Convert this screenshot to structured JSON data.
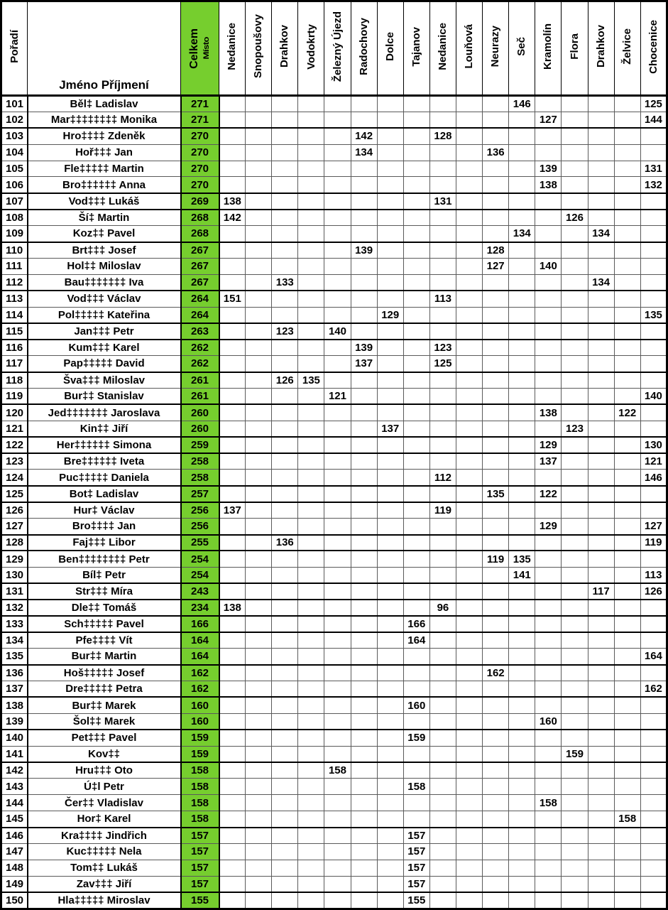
{
  "colors": {
    "green": "#76CE2E",
    "grid": "#5a5a5a",
    "border": "#000000"
  },
  "header": {
    "rank": "Pořadí",
    "name": "Jméno Příjmení",
    "total_main": "Celkem",
    "total_sub": "Místo",
    "venues": [
      "Nedanice",
      "Snopoušovy",
      "Drahkov",
      "Vodokrty",
      "Železný Újezd",
      "Radochovy",
      "Dolce",
      "Tajanov",
      "Nedanice",
      "Louňová",
      "Neurazy",
      "Seč",
      "Kramolín",
      "Flora",
      "Drahkov",
      "Želvice",
      "Chocenice"
    ]
  },
  "rows": [
    {
      "rank": "101",
      "name": "Běl‡ Ladislav",
      "total": "271",
      "scores": {
        "11": "146",
        "16": "125"
      }
    },
    {
      "rank": "102",
      "name": "Mar‡‡‡‡‡‡‡‡ Monika",
      "total": "271",
      "scores": {
        "12": "127",
        "16": "144"
      }
    },
    {
      "rank": "103",
      "name": "Hro‡‡‡‡ Zdeněk",
      "total": "270",
      "scores": {
        "5": "142",
        "8": "128"
      }
    },
    {
      "rank": "104",
      "name": "Hoř‡‡‡ Jan",
      "total": "270",
      "scores": {
        "5": "134",
        "10": "136"
      }
    },
    {
      "rank": "105",
      "name": "Fle‡‡‡‡‡ Martin",
      "total": "270",
      "scores": {
        "12": "139",
        "16": "131"
      }
    },
    {
      "rank": "106",
      "name": "Bro‡‡‡‡‡‡ Anna",
      "total": "270",
      "scores": {
        "12": "138",
        "16": "132"
      }
    },
    {
      "rank": "107",
      "name": "Vod‡‡‡ Lukáš",
      "total": "269",
      "scores": {
        "0": "138",
        "8": "131"
      }
    },
    {
      "rank": "108",
      "name": "Ší‡ Martin",
      "total": "268",
      "scores": {
        "0": "142",
        "13": "126"
      }
    },
    {
      "rank": "109",
      "name": "Koz‡‡ Pavel",
      "total": "268",
      "scores": {
        "11": "134",
        "14": "134"
      }
    },
    {
      "rank": "110",
      "name": "Brt‡‡‡ Josef",
      "total": "267",
      "scores": {
        "5": "139",
        "10": "128"
      }
    },
    {
      "rank": "111",
      "name": "Hol‡‡ Miloslav",
      "total": "267",
      "scores": {
        "10": "127",
        "12": "140"
      }
    },
    {
      "rank": "112",
      "name": "Bau‡‡‡‡‡‡‡ Iva",
      "total": "267",
      "scores": {
        "2": "133",
        "14": "134"
      }
    },
    {
      "rank": "113",
      "name": "Vod‡‡‡ Václav",
      "total": "264",
      "scores": {
        "0": "151",
        "8": "113"
      }
    },
    {
      "rank": "114",
      "name": "Pol‡‡‡‡‡ Kateřina",
      "total": "264",
      "scores": {
        "6": "129",
        "16": "135"
      }
    },
    {
      "rank": "115",
      "name": "Jan‡‡‡ Petr",
      "total": "263",
      "scores": {
        "2": "123",
        "4": "140"
      }
    },
    {
      "rank": "116",
      "name": "Kum‡‡‡ Karel",
      "total": "262",
      "scores": {
        "5": "139",
        "8": "123"
      }
    },
    {
      "rank": "117",
      "name": "Pap‡‡‡‡‡ David",
      "total": "262",
      "scores": {
        "5": "137",
        "8": "125"
      }
    },
    {
      "rank": "118",
      "name": "Šva‡‡‡ Miloslav",
      "total": "261",
      "scores": {
        "2": "126",
        "3": "135"
      }
    },
    {
      "rank": "119",
      "name": "Bur‡‡ Stanislav",
      "total": "261",
      "scores": {
        "4": "121",
        "16": "140"
      }
    },
    {
      "rank": "120",
      "name": "Jed‡‡‡‡‡‡‡ Jaroslava",
      "total": "260",
      "scores": {
        "12": "138",
        "15": "122"
      }
    },
    {
      "rank": "121",
      "name": "Kin‡‡ Jiří",
      "total": "260",
      "scores": {
        "6": "137",
        "13": "123"
      }
    },
    {
      "rank": "122",
      "name": "Her‡‡‡‡‡‡ Simona",
      "total": "259",
      "scores": {
        "12": "129",
        "16": "130"
      }
    },
    {
      "rank": "123",
      "name": "Bre‡‡‡‡‡‡ Iveta",
      "total": "258",
      "scores": {
        "12": "137",
        "16": "121"
      }
    },
    {
      "rank": "124",
      "name": "Puc‡‡‡‡‡ Daniela",
      "total": "258",
      "scores": {
        "8": "112",
        "16": "146"
      }
    },
    {
      "rank": "125",
      "name": "Bot‡ Ladislav",
      "total": "257",
      "scores": {
        "10": "135",
        "12": "122"
      }
    },
    {
      "rank": "126",
      "name": "Hur‡ Václav",
      "total": "256",
      "scores": {
        "0": "137",
        "8": "119"
      }
    },
    {
      "rank": "127",
      "name": "Bro‡‡‡‡ Jan",
      "total": "256",
      "scores": {
        "12": "129",
        "16": "127"
      }
    },
    {
      "rank": "128",
      "name": "Faj‡‡‡ Libor",
      "total": "255",
      "scores": {
        "2": "136",
        "16": "119"
      }
    },
    {
      "rank": "129",
      "name": "Ben‡‡‡‡‡‡‡‡ Petr",
      "total": "254",
      "scores": {
        "10": "119",
        "11": "135"
      }
    },
    {
      "rank": "130",
      "name": "Bíl‡ Petr",
      "total": "254",
      "scores": {
        "11": "141",
        "16": "113"
      }
    },
    {
      "rank": "131",
      "name": "Str‡‡‡ Míra",
      "total": "243",
      "scores": {
        "14": "117",
        "16": "126"
      }
    },
    {
      "rank": "132",
      "name": "Dle‡‡ Tomáš",
      "total": "234",
      "scores": {
        "0": "138",
        "8": "96"
      }
    },
    {
      "rank": "133",
      "name": "Sch‡‡‡‡‡ Pavel",
      "total": "166",
      "scores": {
        "7": "166"
      }
    },
    {
      "rank": "134",
      "name": "Pfe‡‡‡‡ Vít",
      "total": "164",
      "scores": {
        "7": "164"
      }
    },
    {
      "rank": "135",
      "name": "Bur‡‡ Martin",
      "total": "164",
      "scores": {
        "16": "164"
      }
    },
    {
      "rank": "136",
      "name": "Hoš‡‡‡‡‡ Josef",
      "total": "162",
      "scores": {
        "10": "162"
      }
    },
    {
      "rank": "137",
      "name": "Dre‡‡‡‡‡ Petra",
      "total": "162",
      "scores": {
        "16": "162"
      }
    },
    {
      "rank": "138",
      "name": "Bur‡‡ Marek",
      "total": "160",
      "scores": {
        "7": "160"
      }
    },
    {
      "rank": "139",
      "name": "Šol‡‡ Marek",
      "total": "160",
      "scores": {
        "12": "160"
      }
    },
    {
      "rank": "140",
      "name": "Pet‡‡‡ Pavel",
      "total": "159",
      "scores": {
        "7": "159"
      }
    },
    {
      "rank": "141",
      "name": "Kov‡‡",
      "total": "159",
      "scores": {
        "13": "159"
      }
    },
    {
      "rank": "142",
      "name": "Hru‡‡‡ Oto",
      "total": "158",
      "scores": {
        "4": "158"
      }
    },
    {
      "rank": "143",
      "name": "Ú‡l Petr",
      "total": "158",
      "scores": {
        "7": "158"
      }
    },
    {
      "rank": "144",
      "name": "Čer‡‡ Vladislav",
      "total": "158",
      "scores": {
        "12": "158"
      }
    },
    {
      "rank": "145",
      "name": "Hor‡ Karel",
      "total": "158",
      "scores": {
        "15": "158"
      }
    },
    {
      "rank": "146",
      "name": "Kra‡‡‡‡ Jindřich",
      "total": "157",
      "scores": {
        "7": "157"
      }
    },
    {
      "rank": "147",
      "name": "Kuc‡‡‡‡‡ Nela",
      "total": "157",
      "scores": {
        "7": "157"
      }
    },
    {
      "rank": "148",
      "name": "Tom‡‡ Lukáš",
      "total": "157",
      "scores": {
        "7": "157"
      }
    },
    {
      "rank": "149",
      "name": "Zav‡‡‡ Jiří",
      "total": "157",
      "scores": {
        "7": "157"
      }
    },
    {
      "rank": "150",
      "name": "Hla‡‡‡‡‡ Miroslav",
      "total": "155",
      "scores": {
        "7": "155"
      }
    }
  ]
}
